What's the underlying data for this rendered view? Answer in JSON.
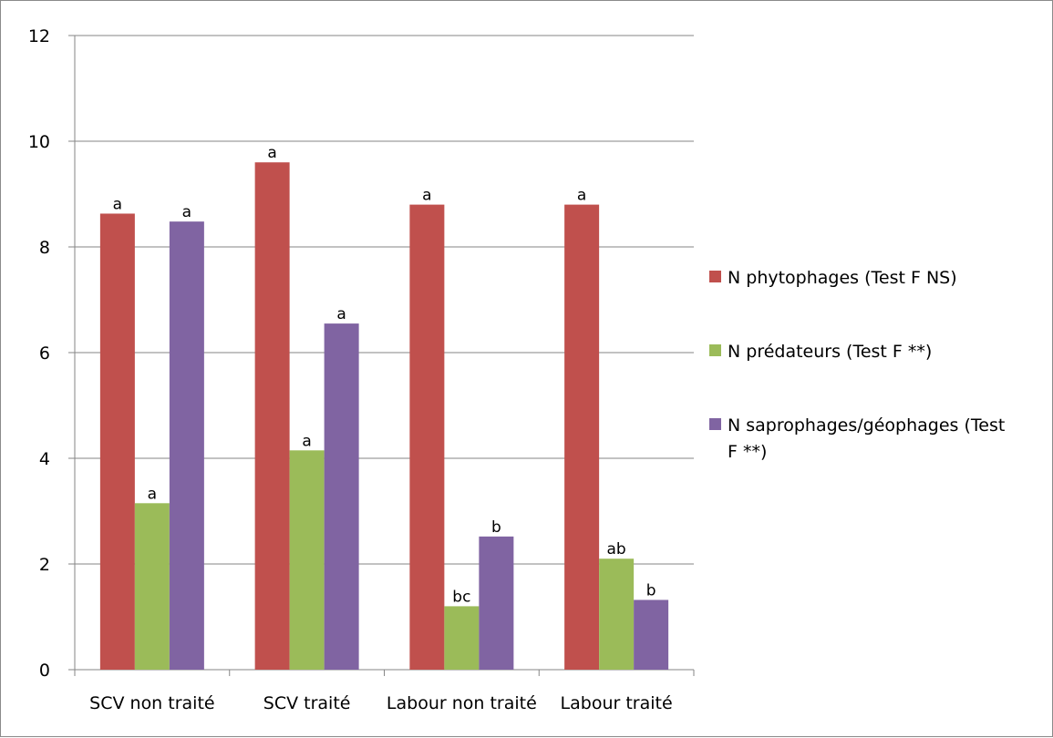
{
  "chart_data": {
    "type": "bar",
    "categories": [
      "SCV non traité",
      "SCV traité",
      "Labour non traité",
      "Labour traité"
    ],
    "series": [
      {
        "name": "N phytophages (Test F NS)",
        "legend_lines": [
          "N phytophages (Test F NS)"
        ],
        "color": "#c0504d",
        "values": [
          8.63,
          9.6,
          8.8,
          8.8
        ],
        "labels": [
          "a",
          "a",
          "a",
          "a"
        ]
      },
      {
        "name": "N prédateurs (Test F **)",
        "legend_lines": [
          "N prédateurs (Test F **)"
        ],
        "color": "#9bbb59",
        "values": [
          3.15,
          4.15,
          1.2,
          2.1
        ],
        "labels": [
          "a",
          "a",
          "bc",
          "ab"
        ]
      },
      {
        "name": "N saprophages/géophages (Test F **)",
        "legend_lines": [
          "N saprophages/géophages (Test",
          "F **)"
        ],
        "color": "#8064a2",
        "values": [
          8.48,
          6.55,
          2.52,
          1.32
        ],
        "labels": [
          "a",
          "a",
          "b",
          "b"
        ]
      }
    ],
    "ylim": [
      0,
      12
    ],
    "yticks": [
      "0",
      "2",
      "4",
      "6",
      "8",
      "10",
      "12"
    ],
    "grid": true,
    "gridColor": "#868686",
    "legend_position": "right"
  }
}
